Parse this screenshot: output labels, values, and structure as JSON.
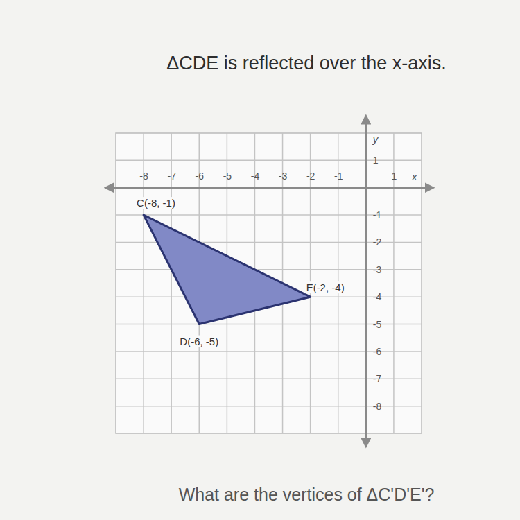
{
  "chart_data": {
    "type": "polygon",
    "title": "ΔCDE is reflected over the x-axis.",
    "caption": "What are the vertices of ΔC'D'E'?",
    "x_label": "x",
    "y_label": "y",
    "x": [
      -8,
      -6,
      -2
    ],
    "values": [
      -1,
      -5,
      -4
    ],
    "value_labels": [
      "C(-8, -1)",
      "D(-6, -5)",
      "E(-2, -4)"
    ],
    "data_labels": true,
    "color": "#8189c6",
    "xlim": [
      -9,
      2
    ],
    "xticks": [
      -8,
      -7,
      -6,
      -5,
      -4,
      -3,
      -2,
      -1,
      1
    ],
    "ylim": [
      -9,
      2
    ],
    "yticks": [
      1,
      -1,
      -2,
      -3,
      -4,
      -5,
      -6,
      -7,
      -8
    ],
    "grid": true
  }
}
